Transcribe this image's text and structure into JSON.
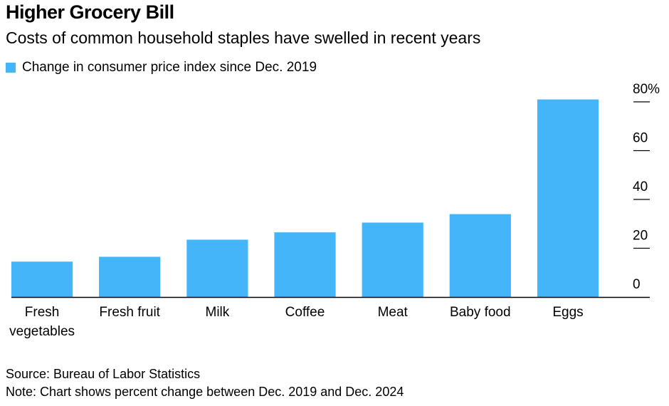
{
  "title": "Higher Grocery Bill",
  "subtitle": "Costs of common household staples have swelled in recent years",
  "legend_label": "Change in consumer price index since Dec. 2019",
  "source": "Source: Bureau of Labor Statistics",
  "note": "Note: Chart shows percent change between Dec. 2019 and Dec. 2024",
  "colors": {
    "bar": "#45b5fa",
    "axis": "#000000",
    "tick": "#000000"
  },
  "chart_data": {
    "type": "bar",
    "categories": [
      [
        "Fresh",
        "vegetables"
      ],
      [
        "Fresh fruit"
      ],
      [
        "Milk"
      ],
      [
        "Coffee"
      ],
      [
        "Meat"
      ],
      [
        "Baby food"
      ],
      [
        "Eggs"
      ]
    ],
    "values": [
      14.5,
      16.5,
      23.5,
      26.5,
      30.5,
      34,
      81
    ],
    "ylim": [
      0,
      80
    ],
    "yticks": [
      0,
      20,
      40,
      60,
      80
    ],
    "ytick_labels": [
      "0",
      "20",
      "40",
      "60",
      "80%"
    ],
    "legend": "top-left",
    "grid": false
  }
}
